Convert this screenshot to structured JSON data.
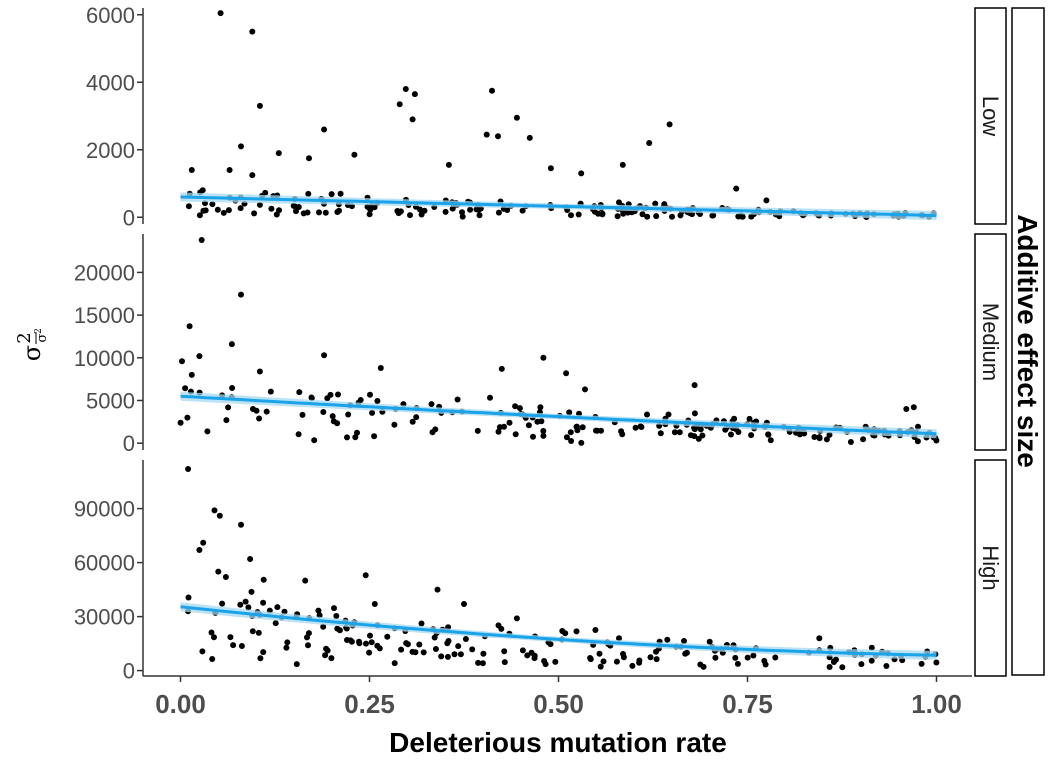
{
  "chart_data": {
    "type": "scatter",
    "xlabel": "Deleterious mutation rate",
    "ylabel": {
      "main": "σ",
      "sup": "2",
      "sub": "σ",
      "sub_sup": "2"
    },
    "outer_strip": "Additive effect size",
    "xlim": [
      0,
      1
    ],
    "x_ticks": [
      "0.00",
      "0.25",
      "0.50",
      "0.75",
      "1.00"
    ],
    "x_tick_values": [
      0,
      0.25,
      0.5,
      0.75,
      1.0
    ],
    "point_color": "#000000",
    "fit_color": "#1aa3e8",
    "ribbon_color": "#a6d8f2",
    "grid": false,
    "panels": [
      {
        "strip": "Low",
        "ylim": [
          -200,
          6200
        ],
        "y_ticks": [
          "0",
          "2000",
          "4000",
          "6000"
        ],
        "y_tick_values": [
          0,
          2000,
          4000,
          6000
        ],
        "fit": {
          "start": 600,
          "end": 50,
          "curve": 0
        },
        "noise": {
          "base": 150,
          "spread": 600,
          "decay": 0.8
        },
        "outliers": [
          [
            0.053,
            6050
          ],
          [
            0.095,
            5500
          ],
          [
            0.105,
            3300
          ],
          [
            0.29,
            3350
          ],
          [
            0.298,
            3800
          ],
          [
            0.31,
            3650
          ],
          [
            0.307,
            2900
          ],
          [
            0.412,
            3750
          ],
          [
            0.42,
            2400
          ],
          [
            0.405,
            2450
          ],
          [
            0.445,
            2950
          ],
          [
            0.462,
            2350
          ],
          [
            0.355,
            1550
          ],
          [
            0.19,
            2600
          ],
          [
            0.08,
            2100
          ],
          [
            0.13,
            1900
          ],
          [
            0.23,
            1850
          ],
          [
            0.015,
            1400
          ],
          [
            0.585,
            1550
          ],
          [
            0.62,
            2200
          ],
          [
            0.647,
            2750
          ],
          [
            0.49,
            1450
          ],
          [
            0.53,
            1300
          ],
          [
            0.065,
            1400
          ],
          [
            0.17,
            1750
          ],
          [
            0.735,
            850
          ],
          [
            0.775,
            500
          ],
          [
            0.095,
            1250
          ]
        ]
      },
      {
        "strip": "Medium",
        "ylim": [
          -800,
          24500
        ],
        "y_ticks": [
          "0",
          "5000",
          "10000",
          "15000",
          "20000"
        ],
        "y_tick_values": [
          0,
          5000,
          10000,
          15000,
          20000
        ],
        "fit": {
          "start": 5500,
          "end": 1100,
          "curve": 0.4
        },
        "noise": {
          "base": 1200,
          "spread": 3500,
          "decay": 0.6
        },
        "outliers": [
          [
            0.028,
            23800
          ],
          [
            0.08,
            17400
          ],
          [
            0.012,
            13700
          ],
          [
            0.068,
            11600
          ],
          [
            0.002,
            9600
          ],
          [
            0.025,
            10200
          ],
          [
            0.19,
            10300
          ],
          [
            0.48,
            10000
          ],
          [
            0.265,
            8800
          ],
          [
            0.425,
            8700
          ],
          [
            0.51,
            8200
          ],
          [
            0.535,
            6300
          ],
          [
            0.68,
            6800
          ],
          [
            0.96,
            4000
          ],
          [
            0.97,
            4200
          ],
          [
            0.015,
            8000
          ],
          [
            0.105,
            8400
          ],
          [
            0.055,
            5600
          ]
        ]
      },
      {
        "strip": "High",
        "ylim": [
          -3000,
          117000
        ],
        "y_ticks": [
          "0",
          "30000",
          "60000",
          "90000"
        ],
        "y_tick_values": [
          0,
          30000,
          60000,
          90000
        ],
        "fit": {
          "start": 35500,
          "end": 8500,
          "curve": 1.5
        },
        "noise": {
          "base": 4500,
          "spread": 22000,
          "decay": 2.5
        },
        "outliers": [
          [
            0.01,
            112000
          ],
          [
            0.045,
            89000
          ],
          [
            0.052,
            86000
          ],
          [
            0.08,
            81000
          ],
          [
            0.03,
            71000
          ],
          [
            0.025,
            67000
          ],
          [
            0.092,
            62000
          ],
          [
            0.05,
            55000
          ],
          [
            0.06,
            52000
          ],
          [
            0.11,
            50500
          ],
          [
            0.165,
            50000
          ],
          [
            0.245,
            53000
          ],
          [
            0.34,
            45000
          ],
          [
            0.375,
            37000
          ],
          [
            0.257,
            37000
          ],
          [
            0.445,
            29000
          ],
          [
            0.505,
            22000
          ],
          [
            0.845,
            18000
          ],
          [
            0.58,
            18000
          ],
          [
            0.7,
            16000
          ]
        ]
      }
    ]
  }
}
